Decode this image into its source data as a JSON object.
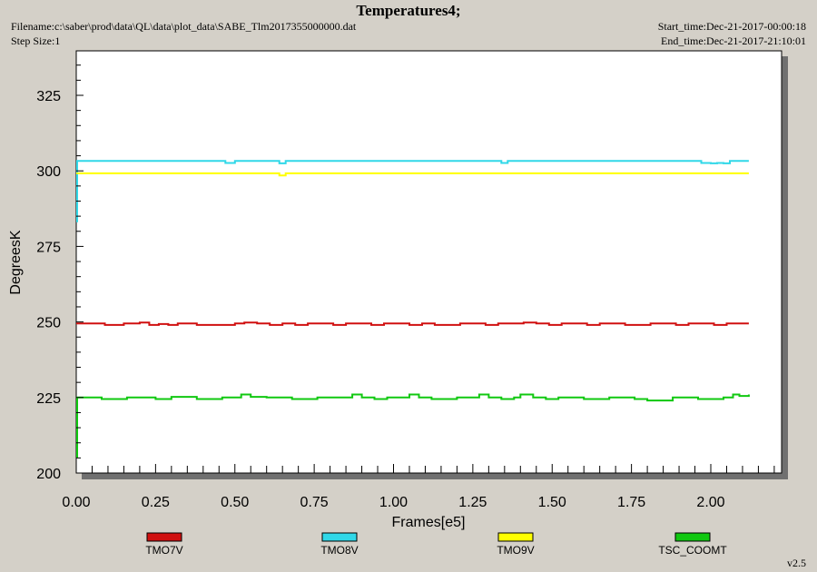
{
  "header": {
    "title": "Temperatures4;",
    "filename": "Filename:c:\\saber\\prod\\data\\QL\\data\\plot_data\\SABE_Tlm2017355000000.dat",
    "step_size": "Step Size:1",
    "start_time": "Start_time:Dec-21-2017-00:00:18",
    "end_time": "End_time:Dec-21-2017-21:10:01"
  },
  "version": "v2.5",
  "colors": {
    "background": "#d4d0c8",
    "plot_area": "#ffffff"
  },
  "chart_data": {
    "type": "line",
    "xlabel": "Frames[e5]",
    "ylabel": "DegreesK",
    "xlim": [
      0.0,
      2.2
    ],
    "ylim": [
      200,
      340
    ],
    "xticks": [
      "0.00",
      "0.25",
      "0.50",
      "0.75",
      "1.00",
      "1.25",
      "1.50",
      "1.75",
      "2.00"
    ],
    "yticks": [
      "200",
      "225",
      "250",
      "275",
      "300",
      "325"
    ],
    "legend_placement": "bottom",
    "series": [
      {
        "name": "TMO7V",
        "color": "#d01010",
        "x": [
          0.0,
          0.02,
          0.05,
          0.09,
          0.12,
          0.15,
          0.18,
          0.2,
          0.23,
          0.26,
          0.29,
          0.32,
          0.35,
          0.38,
          0.42,
          0.46,
          0.5,
          0.53,
          0.57,
          0.61,
          0.65,
          0.69,
          0.73,
          0.77,
          0.81,
          0.85,
          0.89,
          0.93,
          0.97,
          1.01,
          1.05,
          1.09,
          1.13,
          1.17,
          1.21,
          1.25,
          1.29,
          1.33,
          1.37,
          1.41,
          1.45,
          1.49,
          1.53,
          1.57,
          1.61,
          1.65,
          1.69,
          1.73,
          1.77,
          1.81,
          1.85,
          1.89,
          1.93,
          1.97,
          2.01,
          2.05,
          2.09,
          2.12
        ],
        "y": [
          249.5,
          249.5,
          249.5,
          249.0,
          249.0,
          249.5,
          249.5,
          249.8,
          249.0,
          249.3,
          249.0,
          249.5,
          249.5,
          249.0,
          249.0,
          249.0,
          249.5,
          249.8,
          249.5,
          249.0,
          249.5,
          249.0,
          249.5,
          249.5,
          249.0,
          249.5,
          249.5,
          249.0,
          249.5,
          249.5,
          249.0,
          249.5,
          249.0,
          249.0,
          249.5,
          249.5,
          249.0,
          249.5,
          249.5,
          249.8,
          249.5,
          249.0,
          249.5,
          249.5,
          249.0,
          249.5,
          249.5,
          249.0,
          249.0,
          249.5,
          249.5,
          249.0,
          249.5,
          249.5,
          249.0,
          249.5,
          249.5,
          249.5
        ]
      },
      {
        "name": "TMO8V",
        "color": "#30d8e8",
        "x": [
          0.0,
          0.2,
          0.45,
          0.47,
          0.5,
          0.63,
          0.64,
          0.66,
          1.0,
          1.33,
          1.34,
          1.36,
          1.7,
          1.96,
          1.97,
          2.0,
          2.02,
          2.04,
          2.06,
          2.12
        ],
        "y": [
          303.3,
          303.3,
          303.3,
          302.6,
          303.3,
          303.3,
          302.5,
          303.3,
          303.3,
          303.3,
          302.6,
          303.3,
          303.3,
          303.3,
          302.6,
          302.5,
          302.6,
          302.5,
          303.3,
          303.3
        ],
        "x0_spike": 283
      },
      {
        "name": "TMO9V",
        "color": "#ffff00",
        "x": [
          0.0,
          0.3,
          0.63,
          0.64,
          0.66,
          1.0,
          1.5,
          2.12
        ],
        "y": [
          299.2,
          299.2,
          299.2,
          298.5,
          299.2,
          299.2,
          299.2,
          299.2
        ]
      },
      {
        "name": "TSC_COOMT",
        "color": "#10c810",
        "x": [
          0.0,
          0.04,
          0.08,
          0.12,
          0.16,
          0.2,
          0.25,
          0.3,
          0.34,
          0.38,
          0.42,
          0.46,
          0.5,
          0.52,
          0.55,
          0.6,
          0.64,
          0.68,
          0.72,
          0.76,
          0.8,
          0.84,
          0.87,
          0.9,
          0.94,
          0.98,
          1.02,
          1.05,
          1.08,
          1.12,
          1.16,
          1.2,
          1.24,
          1.27,
          1.3,
          1.34,
          1.38,
          1.4,
          1.44,
          1.48,
          1.52,
          1.56,
          1.6,
          1.64,
          1.68,
          1.72,
          1.76,
          1.8,
          1.84,
          1.88,
          1.92,
          1.96,
          2.0,
          2.04,
          2.07,
          2.09,
          2.12
        ],
        "y": [
          225.0,
          225.0,
          224.5,
          224.5,
          225.0,
          225.0,
          224.5,
          225.2,
          225.2,
          224.5,
          224.5,
          225.0,
          225.0,
          226.0,
          225.2,
          225.0,
          225.0,
          224.5,
          224.5,
          225.0,
          225.0,
          225.0,
          226.0,
          225.0,
          224.5,
          225.0,
          225.0,
          226.0,
          225.0,
          224.5,
          224.5,
          225.0,
          225.0,
          226.0,
          225.0,
          224.5,
          225.0,
          226.0,
          225.0,
          224.5,
          225.0,
          225.0,
          224.5,
          224.5,
          225.0,
          225.0,
          224.5,
          224.0,
          224.0,
          225.0,
          225.0,
          224.5,
          224.5,
          225.0,
          226.0,
          225.5,
          226.0
        ],
        "x0_spike": 205
      }
    ]
  }
}
